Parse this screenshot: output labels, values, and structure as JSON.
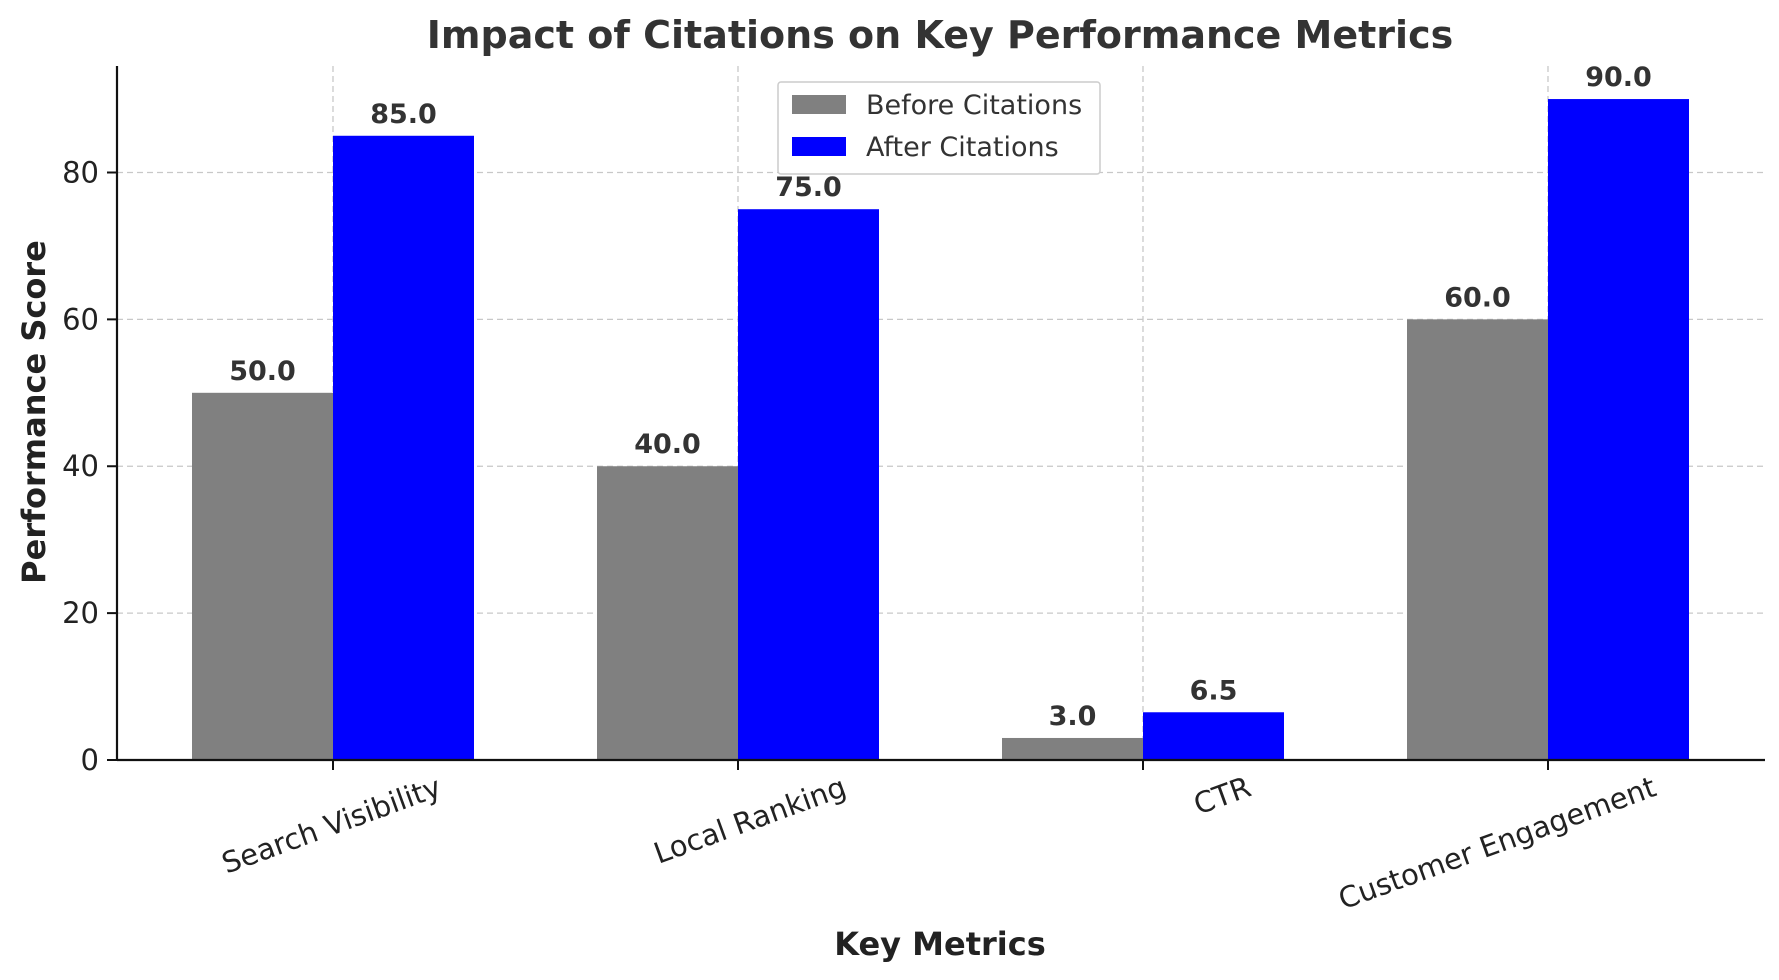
{
  "chart_data": {
    "type": "bar",
    "title": "Impact of Citations on Key Performance Metrics",
    "xlabel": "Key Metrics",
    "ylabel": "Performance Score",
    "categories": [
      "Search Visibility",
      "Local Ranking",
      "CTR",
      "Customer Engagement"
    ],
    "series": [
      {
        "name": "Before Citations",
        "color": "#808080",
        "values": [
          50.0,
          40.0,
          3.0,
          60.0
        ],
        "labels": [
          "50.0",
          "40.0",
          "3.0",
          "60.0"
        ]
      },
      {
        "name": "After Citations",
        "color": "#0000ff",
        "values": [
          85.0,
          75.0,
          6.5,
          90.0
        ],
        "labels": [
          "85.0",
          "75.0",
          "6.5",
          "90.0"
        ]
      }
    ],
    "ylim": [
      0,
      94.5
    ],
    "yticks": [
      0,
      20,
      40,
      60,
      80
    ],
    "yticklabels": [
      "0",
      "20",
      "40",
      "60",
      "80"
    ],
    "grid": true,
    "legend_position": "top-center"
  }
}
